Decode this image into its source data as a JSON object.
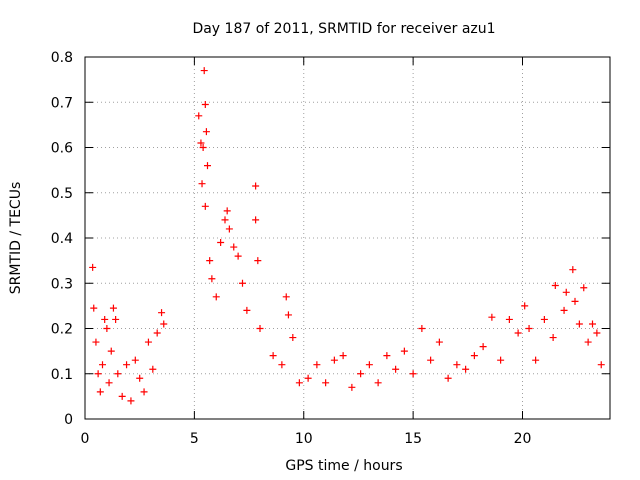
{
  "chart_data": {
    "type": "scatter",
    "title": "Day 187 of 2011, SRMTID for receiver azu1",
    "xlabel": "GPS time / hours",
    "ylabel": "SRMTID / TECUs",
    "xlim": [
      0,
      24
    ],
    "ylim": [
      0,
      0.8
    ],
    "x_ticks": [
      "0",
      "5",
      "10",
      "15",
      "20"
    ],
    "x_tick_values": [
      0,
      5,
      10,
      15,
      20
    ],
    "y_ticks": [
      "0",
      "0.1",
      "0.2",
      "0.3",
      "0.4",
      "0.5",
      "0.6",
      "0.7",
      "0.8"
    ],
    "y_tick_values": [
      0,
      0.1,
      0.2,
      0.3,
      0.4,
      0.5,
      0.6,
      0.7,
      0.8
    ],
    "grid": true,
    "marker": "+",
    "series": [
      {
        "name": "SRMTID azu1",
        "color": "#ff0000",
        "points": [
          [
            0.35,
            0.335
          ],
          [
            0.4,
            0.245
          ],
          [
            0.5,
            0.17
          ],
          [
            0.6,
            0.1
          ],
          [
            0.7,
            0.06
          ],
          [
            0.8,
            0.12
          ],
          [
            0.9,
            0.22
          ],
          [
            1.0,
            0.2
          ],
          [
            1.1,
            0.08
          ],
          [
            1.2,
            0.15
          ],
          [
            1.3,
            0.245
          ],
          [
            1.4,
            0.22
          ],
          [
            1.5,
            0.1
          ],
          [
            1.7,
            0.05
          ],
          [
            1.9,
            0.12
          ],
          [
            2.1,
            0.04
          ],
          [
            2.3,
            0.13
          ],
          [
            2.5,
            0.09
          ],
          [
            2.7,
            0.06
          ],
          [
            2.9,
            0.17
          ],
          [
            3.1,
            0.11
          ],
          [
            3.3,
            0.19
          ],
          [
            3.5,
            0.235
          ],
          [
            3.6,
            0.21
          ],
          [
            5.2,
            0.67
          ],
          [
            5.3,
            0.61
          ],
          [
            5.35,
            0.52
          ],
          [
            5.4,
            0.6
          ],
          [
            5.45,
            0.77
          ],
          [
            5.5,
            0.695
          ],
          [
            5.55,
            0.635
          ],
          [
            5.6,
            0.56
          ],
          [
            5.5,
            0.47
          ],
          [
            5.7,
            0.35
          ],
          [
            5.8,
            0.31
          ],
          [
            6.0,
            0.27
          ],
          [
            6.2,
            0.39
          ],
          [
            6.4,
            0.44
          ],
          [
            6.5,
            0.46
          ],
          [
            6.6,
            0.42
          ],
          [
            6.8,
            0.38
          ],
          [
            7.0,
            0.36
          ],
          [
            7.2,
            0.3
          ],
          [
            7.4,
            0.24
          ],
          [
            7.8,
            0.515
          ],
          [
            7.8,
            0.44
          ],
          [
            7.9,
            0.35
          ],
          [
            8.0,
            0.2
          ],
          [
            8.6,
            0.14
          ],
          [
            9.0,
            0.12
          ],
          [
            9.2,
            0.27
          ],
          [
            9.3,
            0.23
          ],
          [
            9.5,
            0.18
          ],
          [
            9.8,
            0.08
          ],
          [
            10.2,
            0.09
          ],
          [
            10.6,
            0.12
          ],
          [
            11.0,
            0.08
          ],
          [
            11.4,
            0.13
          ],
          [
            11.8,
            0.14
          ],
          [
            12.2,
            0.07
          ],
          [
            12.6,
            0.1
          ],
          [
            13.0,
            0.12
          ],
          [
            13.4,
            0.08
          ],
          [
            13.8,
            0.14
          ],
          [
            14.2,
            0.11
          ],
          [
            14.6,
            0.15
          ],
          [
            15.0,
            0.1
          ],
          [
            15.4,
            0.2
          ],
          [
            15.8,
            0.13
          ],
          [
            16.2,
            0.17
          ],
          [
            16.6,
            0.09
          ],
          [
            17.0,
            0.12
          ],
          [
            17.4,
            0.11
          ],
          [
            17.8,
            0.14
          ],
          [
            18.2,
            0.16
          ],
          [
            18.6,
            0.225
          ],
          [
            19.0,
            0.13
          ],
          [
            19.4,
            0.22
          ],
          [
            19.8,
            0.19
          ],
          [
            20.1,
            0.25
          ],
          [
            20.3,
            0.2
          ],
          [
            20.6,
            0.13
          ],
          [
            21.0,
            0.22
          ],
          [
            21.4,
            0.18
          ],
          [
            21.5,
            0.295
          ],
          [
            21.9,
            0.24
          ],
          [
            22.0,
            0.28
          ],
          [
            22.3,
            0.33
          ],
          [
            22.4,
            0.26
          ],
          [
            22.6,
            0.21
          ],
          [
            22.8,
            0.29
          ],
          [
            23.0,
            0.17
          ],
          [
            23.2,
            0.21
          ],
          [
            23.4,
            0.19
          ],
          [
            23.6,
            0.12
          ]
        ]
      }
    ]
  }
}
